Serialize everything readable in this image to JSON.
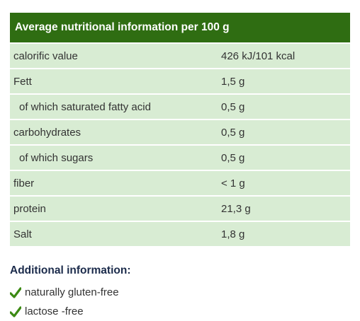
{
  "header": {
    "title": "Average nutritional information per 100 g"
  },
  "table": {
    "rows": [
      [
        "calorific value",
        "426 kJ/101 kcal"
      ],
      [
        "Fett",
        "1,5 g"
      ],
      [
        "of which saturated fatty acid",
        "0,5 g"
      ],
      [
        "carbohydrates",
        "0,5 g"
      ],
      [
        "of which sugars",
        "0,5 g"
      ],
      [
        "fiber",
        "< 1 g"
      ],
      [
        "protein",
        "21,3 g"
      ],
      [
        "Salt",
        "1,8 g"
      ]
    ]
  },
  "additional": {
    "title": "Additional information:",
    "items": [
      "naturally gluten-free",
      "lactose -free"
    ]
  }
}
